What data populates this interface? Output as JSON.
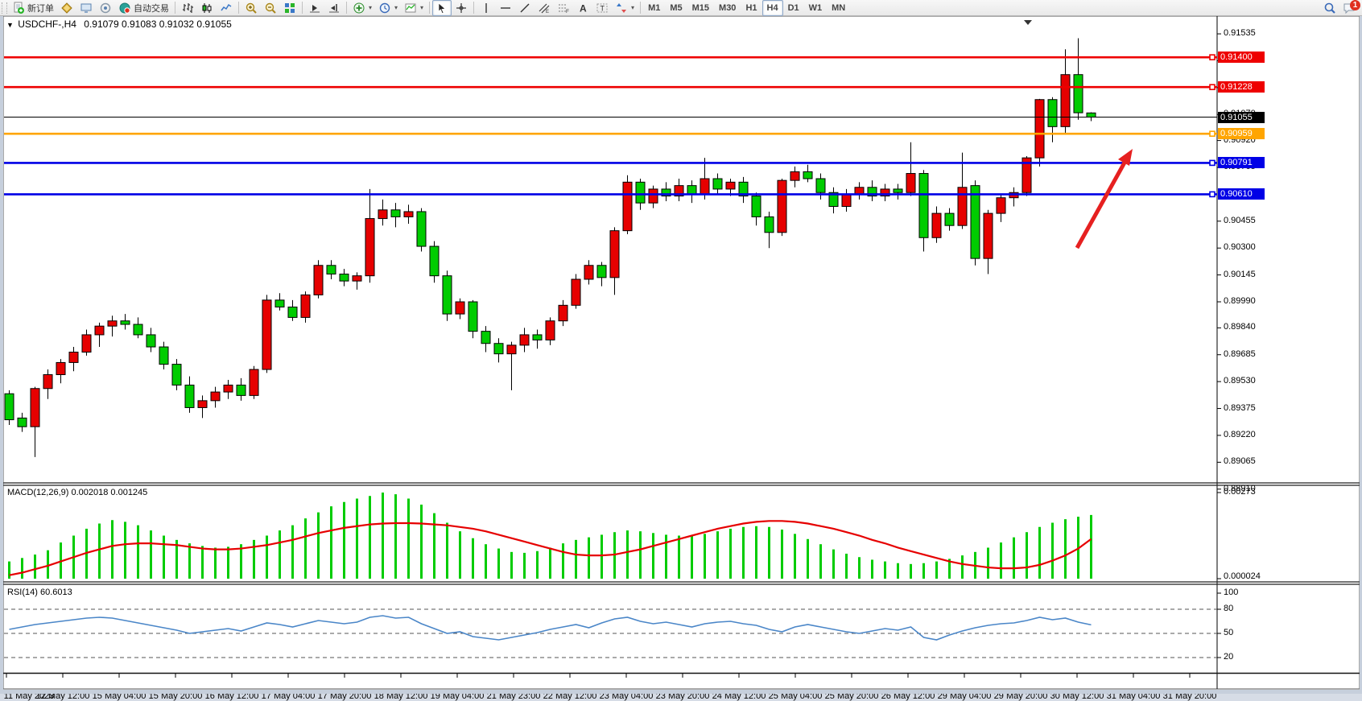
{
  "toolbar": {
    "left_groups": [
      {
        "items": [
          {
            "name": "new-order-button",
            "icon": "doc-plus",
            "label": "新订单"
          },
          {
            "name": "charts-button",
            "icon": "gold-chart"
          },
          {
            "name": "market-watch-button",
            "icon": "monitor"
          },
          {
            "name": "data-window-button",
            "icon": "signal"
          },
          {
            "name": "autotrading-button",
            "icon": "autotrade",
            "label": "自动交易"
          }
        ]
      },
      {
        "items": [
          {
            "name": "bar-chart-mode-button",
            "icon": "bars"
          },
          {
            "name": "candlestick-mode-button",
            "icon": "candle"
          },
          {
            "name": "line-chart-mode-button",
            "icon": "linechart"
          }
        ]
      },
      {
        "items": [
          {
            "name": "zoom-in-button",
            "icon": "zoomin"
          },
          {
            "name": "zoom-out-button",
            "icon": "zoomout"
          },
          {
            "name": "tile-windows-button",
            "icon": "tiles"
          }
        ]
      },
      {
        "items": [
          {
            "name": "auto-scroll-button",
            "icon": "autoscroll"
          },
          {
            "name": "chart-shift-button",
            "icon": "chartshift"
          }
        ]
      },
      {
        "items": [
          {
            "name": "indicators-button",
            "icon": "indplus",
            "dropdown": true
          },
          {
            "name": "periods-button",
            "icon": "clock",
            "dropdown": true
          },
          {
            "name": "templates-button",
            "icon": "template",
            "dropdown": true
          }
        ]
      },
      {
        "items": [
          {
            "name": "cursor-button",
            "icon": "cursor",
            "active": true
          },
          {
            "name": "crosshair-button",
            "icon": "crosshair"
          }
        ]
      },
      {
        "items": [
          {
            "name": "vertical-line-button",
            "icon": "vline"
          },
          {
            "name": "horizontal-line-button",
            "icon": "hline"
          },
          {
            "name": "trendline-button",
            "icon": "tline"
          },
          {
            "name": "channel-button",
            "icon": "channel"
          },
          {
            "name": "fibonacci-button",
            "icon": "fib"
          },
          {
            "name": "text-button",
            "icon": "textA"
          },
          {
            "name": "text-label-button",
            "icon": "labelT"
          },
          {
            "name": "arrows-button",
            "icon": "shapes",
            "dropdown": true
          }
        ]
      },
      {
        "items": [
          {
            "name": "tf-m1-button",
            "text": "M1"
          },
          {
            "name": "tf-m5-button",
            "text": "M5"
          },
          {
            "name": "tf-m15-button",
            "text": "M15"
          },
          {
            "name": "tf-m30-button",
            "text": "M30"
          },
          {
            "name": "tf-h1-button",
            "text": "H1"
          },
          {
            "name": "tf-h4-button",
            "text": "H4",
            "active": true
          },
          {
            "name": "tf-d1-button",
            "text": "D1"
          },
          {
            "name": "tf-w1-button",
            "text": "W1"
          },
          {
            "name": "tf-mn-button",
            "text": "MN"
          }
        ]
      }
    ],
    "right_items": [
      {
        "name": "search-button",
        "icon": "search"
      },
      {
        "name": "notifications-button",
        "icon": "chat",
        "badge": "1"
      }
    ]
  },
  "chart": {
    "title": "USDCHF-,H4",
    "ohlc_text": "0.91079 0.91083 0.91032 0.91055",
    "macd_label": "MACD(12,26,9) 0.002018 0.001245",
    "rsi_label": "RSI(14) 60.6013",
    "notification_badge": "1"
  },
  "chart_data": {
    "type": "candlestick",
    "symbol": "USDCHF-",
    "timeframe": "H4",
    "last_ohlc": {
      "open": 0.91079,
      "high": 0.91083,
      "low": 0.91032,
      "close": 0.91055
    },
    "color_convention": "red = bullish, green = bearish (Chinese convention)",
    "price_axis_ticks": [
      "0.91535",
      "0.91380",
      "0.91225",
      "0.91070",
      "0.90920",
      "0.90765",
      "0.90455",
      "0.90300",
      "0.90145",
      "0.89990",
      "0.89840",
      "0.89685",
      "0.89530",
      "0.89375",
      "0.89220",
      "0.89065",
      "0.88910"
    ],
    "horizontal_lines": [
      {
        "price": 0.914,
        "label": "0.91400",
        "color": "#ee0000"
      },
      {
        "price": 0.91228,
        "label": "0.91228",
        "color": "#ee0000"
      },
      {
        "price": 0.90959,
        "label": "0.90959",
        "color": "#ffa500"
      },
      {
        "price": 0.90791,
        "label": "0.90791",
        "color": "#0000e6"
      },
      {
        "price": 0.9061,
        "label": "0.90610",
        "color": "#0000e6"
      }
    ],
    "current_price": {
      "price": 0.91055,
      "label": "0.91055",
      "color": "#000000"
    },
    "candles_ohlc": [
      [
        0.8946,
        0.8948,
        0.8928,
        0.8931
      ],
      [
        0.8932,
        0.8935,
        0.8924,
        0.8927
      ],
      [
        0.8927,
        0.895,
        0.89095,
        0.8949
      ],
      [
        0.8949,
        0.896,
        0.8943,
        0.8957
      ],
      [
        0.8957,
        0.8966,
        0.8952,
        0.8964
      ],
      [
        0.8964,
        0.8973,
        0.8959,
        0.897
      ],
      [
        0.897,
        0.8983,
        0.8968,
        0.898
      ],
      [
        0.898,
        0.8987,
        0.8973,
        0.8985
      ],
      [
        0.8985,
        0.8991,
        0.8979,
        0.8988
      ],
      [
        0.8988,
        0.8992,
        0.8983,
        0.8986
      ],
      [
        0.8986,
        0.899,
        0.8978,
        0.898
      ],
      [
        0.898,
        0.8984,
        0.897,
        0.8973
      ],
      [
        0.8973,
        0.8976,
        0.896,
        0.8963
      ],
      [
        0.8963,
        0.8966,
        0.8948,
        0.8951
      ],
      [
        0.8951,
        0.8956,
        0.8935,
        0.8938
      ],
      [
        0.8938,
        0.8945,
        0.8932,
        0.8942
      ],
      [
        0.8942,
        0.895,
        0.8938,
        0.8947
      ],
      [
        0.8947,
        0.8954,
        0.8943,
        0.8951
      ],
      [
        0.8951,
        0.8955,
        0.8942,
        0.8945
      ],
      [
        0.8945,
        0.8962,
        0.8943,
        0.896
      ],
      [
        0.896,
        0.9003,
        0.8958,
        0.9
      ],
      [
        0.9,
        0.9004,
        0.8994,
        0.8996
      ],
      [
        0.8996,
        0.9,
        0.8988,
        0.899
      ],
      [
        0.899,
        0.9005,
        0.8987,
        0.9003
      ],
      [
        0.9003,
        0.9023,
        0.9001,
        0.902
      ],
      [
        0.902,
        0.9023,
        0.9012,
        0.9015
      ],
      [
        0.9015,
        0.9018,
        0.9008,
        0.9011
      ],
      [
        0.9011,
        0.9016,
        0.9006,
        0.9014
      ],
      [
        0.9014,
        0.9064,
        0.901,
        0.9047
      ],
      [
        0.9047,
        0.9058,
        0.9043,
        0.9052
      ],
      [
        0.9052,
        0.9056,
        0.9042,
        0.9048
      ],
      [
        0.9048,
        0.9055,
        0.9044,
        0.9051
      ],
      [
        0.9051,
        0.9053,
        0.9028,
        0.9031
      ],
      [
        0.9031,
        0.9034,
        0.901,
        0.9014
      ],
      [
        0.9014,
        0.9017,
        0.8988,
        0.8992
      ],
      [
        0.8992,
        0.9001,
        0.8989,
        0.8999
      ],
      [
        0.8999,
        0.9,
        0.8978,
        0.8982
      ],
      [
        0.8982,
        0.8985,
        0.897,
        0.8975
      ],
      [
        0.8975,
        0.8978,
        0.8964,
        0.8969
      ],
      [
        0.8969,
        0.8976,
        0.8948,
        0.8974
      ],
      [
        0.8974,
        0.8984,
        0.897,
        0.898
      ],
      [
        0.898,
        0.8983,
        0.8972,
        0.8977
      ],
      [
        0.8977,
        0.899,
        0.8974,
        0.8988
      ],
      [
        0.8988,
        0.9,
        0.8985,
        0.8997
      ],
      [
        0.8997,
        0.9015,
        0.8995,
        0.9012
      ],
      [
        0.9012,
        0.9023,
        0.9009,
        0.902
      ],
      [
        0.902,
        0.9022,
        0.9008,
        0.9013
      ],
      [
        0.9013,
        0.9042,
        0.9003,
        0.904
      ],
      [
        0.904,
        0.9072,
        0.9038,
        0.9068
      ],
      [
        0.9068,
        0.907,
        0.9052,
        0.9056
      ],
      [
        0.9056,
        0.9066,
        0.9053,
        0.9064
      ],
      [
        0.9064,
        0.9068,
        0.9057,
        0.906
      ],
      [
        0.906,
        0.907,
        0.9057,
        0.9066
      ],
      [
        0.9066,
        0.9069,
        0.9056,
        0.9061
      ],
      [
        0.9061,
        0.9082,
        0.9058,
        0.907
      ],
      [
        0.907,
        0.9073,
        0.9061,
        0.9064
      ],
      [
        0.9064,
        0.907,
        0.906,
        0.9068
      ],
      [
        0.9068,
        0.9071,
        0.9056,
        0.906
      ],
      [
        0.906,
        0.9062,
        0.9043,
        0.9048
      ],
      [
        0.9048,
        0.9051,
        0.903,
        0.9039
      ],
      [
        0.9039,
        0.907,
        0.9037,
        0.9069
      ],
      [
        0.9069,
        0.9077,
        0.9065,
        0.9074
      ],
      [
        0.9074,
        0.9078,
        0.9068,
        0.907
      ],
      [
        0.907,
        0.9073,
        0.9058,
        0.9062
      ],
      [
        0.9062,
        0.9065,
        0.905,
        0.9054
      ],
      [
        0.9054,
        0.9064,
        0.9051,
        0.9061
      ],
      [
        0.9061,
        0.9068,
        0.9058,
        0.9065
      ],
      [
        0.9065,
        0.9069,
        0.9057,
        0.906
      ],
      [
        0.906,
        0.9067,
        0.9057,
        0.9064
      ],
      [
        0.9064,
        0.9067,
        0.9058,
        0.9062
      ],
      [
        0.9062,
        0.9091,
        0.906,
        0.9073
      ],
      [
        0.9073,
        0.9075,
        0.9028,
        0.9036
      ],
      [
        0.9036,
        0.9054,
        0.9033,
        0.905
      ],
      [
        0.905,
        0.9053,
        0.904,
        0.9043
      ],
      [
        0.9043,
        0.9085,
        0.9041,
        0.9065
      ],
      [
        0.9066,
        0.9069,
        0.902,
        0.9024
      ],
      [
        0.9024,
        0.9052,
        0.9015,
        0.905
      ],
      [
        0.905,
        0.9061,
        0.9045,
        0.9059
      ],
      [
        0.9059,
        0.9065,
        0.9054,
        0.9062
      ],
      [
        0.9062,
        0.9083,
        0.906,
        0.9082
      ],
      [
        0.9082,
        0.9116,
        0.9077,
        0.91156
      ],
      [
        0.91156,
        0.9117,
        0.9091,
        0.91
      ],
      [
        0.91,
        0.91446,
        0.9096,
        0.913
      ],
      [
        0.913,
        0.9151,
        0.9104,
        0.9108
      ],
      [
        0.91079,
        0.91083,
        0.91032,
        0.91055
      ]
    ],
    "macd": {
      "label": "MACD(12,26,9)",
      "value_main": 0.002018,
      "value_signal": 0.001245,
      "axis_max": "0.00273",
      "axis_min": "0.000024",
      "scale_max": 0.00273,
      "histogram_frac": [
        0.2,
        0.24,
        0.28,
        0.33,
        0.42,
        0.5,
        0.58,
        0.64,
        0.68,
        0.66,
        0.62,
        0.56,
        0.5,
        0.45,
        0.41,
        0.38,
        0.36,
        0.37,
        0.4,
        0.45,
        0.5,
        0.56,
        0.62,
        0.7,
        0.77,
        0.84,
        0.89,
        0.93,
        0.96,
        1.0,
        0.98,
        0.93,
        0.86,
        0.76,
        0.65,
        0.55,
        0.47,
        0.4,
        0.35,
        0.31,
        0.3,
        0.32,
        0.36,
        0.41,
        0.45,
        0.48,
        0.51,
        0.54,
        0.56,
        0.55,
        0.53,
        0.51,
        0.5,
        0.5,
        0.52,
        0.55,
        0.58,
        0.6,
        0.61,
        0.6,
        0.57,
        0.52,
        0.46,
        0.4,
        0.34,
        0.29,
        0.25,
        0.22,
        0.2,
        0.18,
        0.17,
        0.18,
        0.2,
        0.23,
        0.27,
        0.31,
        0.36,
        0.42,
        0.48,
        0.54,
        0.6,
        0.65,
        0.69,
        0.72,
        0.74
      ],
      "signal_frac": [
        0.04,
        0.07,
        0.11,
        0.15,
        0.2,
        0.25,
        0.3,
        0.34,
        0.38,
        0.4,
        0.41,
        0.41,
        0.4,
        0.39,
        0.37,
        0.35,
        0.34,
        0.34,
        0.35,
        0.37,
        0.39,
        0.42,
        0.45,
        0.49,
        0.53,
        0.56,
        0.59,
        0.61,
        0.63,
        0.64,
        0.645,
        0.645,
        0.64,
        0.63,
        0.62,
        0.6,
        0.58,
        0.55,
        0.51,
        0.47,
        0.43,
        0.39,
        0.35,
        0.31,
        0.28,
        0.27,
        0.27,
        0.28,
        0.31,
        0.34,
        0.38,
        0.42,
        0.46,
        0.5,
        0.54,
        0.58,
        0.61,
        0.64,
        0.66,
        0.67,
        0.67,
        0.66,
        0.64,
        0.61,
        0.58,
        0.54,
        0.5,
        0.45,
        0.41,
        0.36,
        0.32,
        0.28,
        0.24,
        0.2,
        0.17,
        0.15,
        0.13,
        0.12,
        0.12,
        0.13,
        0.16,
        0.21,
        0.27,
        0.35,
        0.46
      ]
    },
    "rsi": {
      "label": "RSI(14)",
      "value": 60.6013,
      "axis_ticks": [
        "100",
        "80",
        "50",
        "20"
      ],
      "levels_dashed": [
        80,
        50,
        20
      ],
      "values": [
        55,
        58,
        61,
        63,
        65,
        67,
        69,
        70,
        69,
        66,
        63,
        60,
        57,
        54,
        50,
        52,
        54,
        56,
        53,
        58,
        63,
        61,
        58,
        62,
        66,
        64,
        62,
        64,
        70,
        72,
        69,
        70,
        62,
        56,
        50,
        52,
        46,
        44,
        42,
        45,
        48,
        51,
        55,
        58,
        61,
        57,
        63,
        68,
        70,
        65,
        62,
        64,
        61,
        58,
        62,
        64,
        65,
        62,
        60,
        55,
        52,
        58,
        61,
        58,
        55,
        52,
        50,
        53,
        56,
        54,
        58,
        45,
        42,
        48,
        53,
        57,
        60,
        62,
        63,
        66,
        70,
        67,
        69,
        64,
        60.6
      ]
    },
    "date_axis_labels": [
      "11 May 2023",
      "12 May 12:00",
      "15 May 04:00",
      "15 May 20:00",
      "16 May 12:00",
      "17 May 04:00",
      "17 May 20:00",
      "18 May 12:00",
      "19 May 04:00",
      "21 May 23:00",
      "22 May 12:00",
      "23 May 04:00",
      "23 May 20:00",
      "24 May 12:00",
      "25 May 04:00",
      "25 May 20:00",
      "26 May 12:00",
      "29 May 04:00",
      "29 May 20:00",
      "30 May 12:00",
      "31 May 04:00",
      "31 May 20:00"
    ],
    "annotation_arrow": {
      "color": "#e62020",
      "direction": "up-right"
    },
    "colors": {
      "bull": "#e60000",
      "bear": "#00cc00",
      "outline": "#000000",
      "macd_hist": "#00cc00",
      "macd_signal": "#e60000",
      "rsi_line": "#4a86c8",
      "hline_red": "#ee0000",
      "hline_blue": "#0000e6",
      "hline_orange": "#ffa500"
    }
  }
}
